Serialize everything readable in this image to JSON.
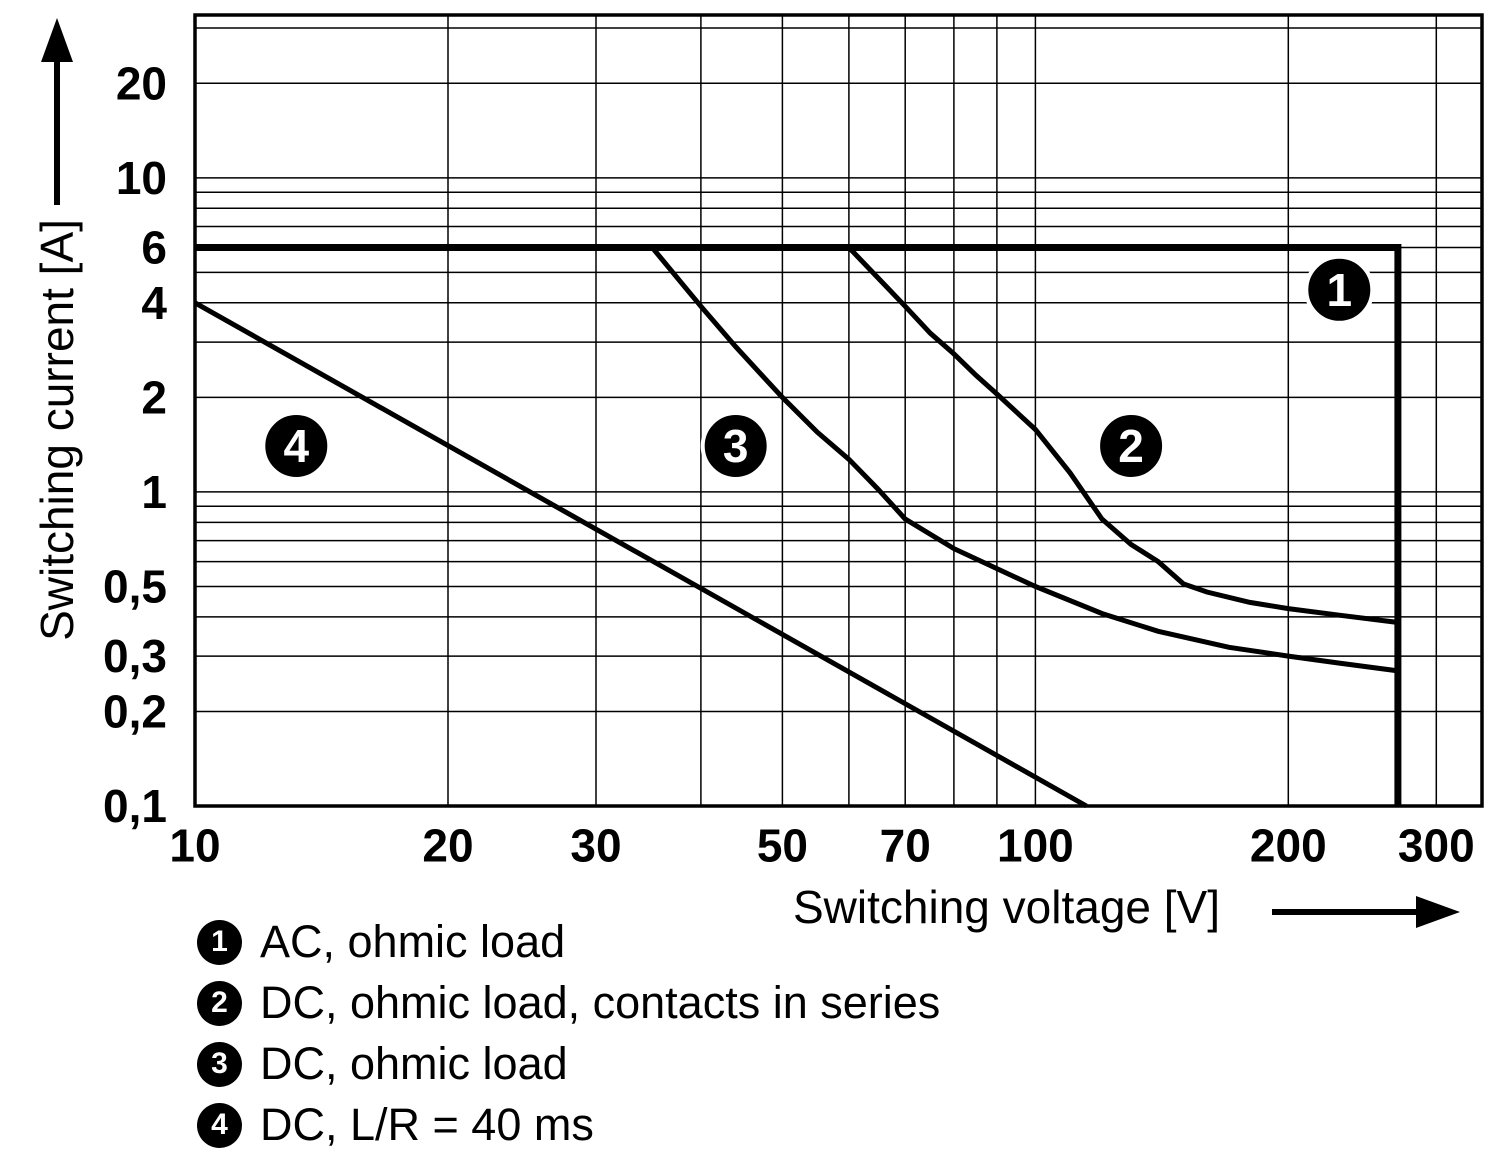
{
  "axes": {
    "x_title": "Switching voltage [V]",
    "y_title": "Switching current [A]"
  },
  "legend": {
    "items": [
      {
        "num": "1",
        "label": "AC, ohmic load"
      },
      {
        "num": "2",
        "label": "DC, ohmic load, contacts in series"
      },
      {
        "num": "3",
        "label": "DC, ohmic load"
      },
      {
        "num": "4",
        "label": "DC, L/R = 40 ms"
      }
    ]
  },
  "colors": {
    "ink": "#000000",
    "background": "#ffffff"
  },
  "chart_data": {
    "type": "line",
    "title": "",
    "xlabel": "Switching voltage [V]",
    "ylabel": "Switching current [A]",
    "x_scale": "log",
    "y_scale": "log",
    "xlim": [
      10,
      340
    ],
    "ylim": [
      0.1,
      33
    ],
    "grid": true,
    "x_ticks": [
      {
        "v": 10,
        "label": "10"
      },
      {
        "v": 20,
        "label": "20"
      },
      {
        "v": 30,
        "label": "30"
      },
      {
        "v": 50,
        "label": "50"
      },
      {
        "v": 70,
        "label": "70"
      },
      {
        "v": 100,
        "label": "100"
      },
      {
        "v": 200,
        "label": "200"
      },
      {
        "v": 300,
        "label": "300"
      }
    ],
    "y_ticks": [
      {
        "v": 20,
        "label": "20"
      },
      {
        "v": 10,
        "label": "10"
      },
      {
        "v": 6,
        "label": "6"
      },
      {
        "v": 4,
        "label": "4"
      },
      {
        "v": 2,
        "label": "2"
      },
      {
        "v": 1,
        "label": "1"
      },
      {
        "v": 0.5,
        "label": "0,5"
      },
      {
        "v": 0.3,
        "label": "0,3"
      },
      {
        "v": 0.2,
        "label": "0,2"
      },
      {
        "v": 0.1,
        "label": "0,1"
      }
    ],
    "x_grid": [
      20,
      30,
      40,
      50,
      60,
      70,
      80,
      90,
      100,
      200,
      300
    ],
    "y_grid": [
      0.2,
      0.3,
      0.4,
      0.5,
      0.6,
      0.7,
      0.8,
      0.9,
      1,
      2,
      3,
      4,
      5,
      6,
      7,
      8,
      9,
      10,
      20,
      30
    ],
    "series": [
      {
        "id": "1",
        "name": "AC, ohmic load",
        "width": 7,
        "points": [
          [
            10,
            6
          ],
          [
            270,
            6
          ],
          [
            270,
            0.1
          ]
        ]
      },
      {
        "id": "2",
        "name": "DC, ohmic load, contacts in series",
        "width": 5,
        "points": [
          [
            60,
            6
          ],
          [
            65,
            4.8
          ],
          [
            70,
            3.9
          ],
          [
            75,
            3.2
          ],
          [
            80,
            2.75
          ],
          [
            85,
            2.35
          ],
          [
            90,
            2.05
          ],
          [
            100,
            1.58
          ],
          [
            110,
            1.15
          ],
          [
            120,
            0.82
          ],
          [
            130,
            0.68
          ],
          [
            140,
            0.6
          ],
          [
            150,
            0.51
          ],
          [
            160,
            0.48
          ],
          [
            180,
            0.445
          ],
          [
            200,
            0.425
          ],
          [
            230,
            0.405
          ],
          [
            268,
            0.385
          ]
        ]
      },
      {
        "id": "3",
        "name": "DC, ohmic load",
        "width": 5,
        "points": [
          [
            35,
            6
          ],
          [
            38,
            4.6
          ],
          [
            40,
            3.9
          ],
          [
            44,
            2.9
          ],
          [
            48,
            2.25
          ],
          [
            50,
            2.0
          ],
          [
            55,
            1.55
          ],
          [
            60,
            1.27
          ],
          [
            65,
            1.02
          ],
          [
            70,
            0.82
          ],
          [
            80,
            0.66
          ],
          [
            90,
            0.57
          ],
          [
            100,
            0.5
          ],
          [
            120,
            0.41
          ],
          [
            140,
            0.36
          ],
          [
            170,
            0.32
          ],
          [
            200,
            0.3
          ],
          [
            230,
            0.285
          ],
          [
            268,
            0.27
          ]
        ]
      },
      {
        "id": "4",
        "name": "DC, L/R = 40 ms",
        "width": 5,
        "points": [
          [
            10,
            4
          ],
          [
            115,
            0.1
          ]
        ]
      }
    ],
    "curve_markers": [
      {
        "label": "1",
        "x": 230,
        "y": 4.4
      },
      {
        "label": "2",
        "x": 130,
        "y": 1.4
      },
      {
        "label": "3",
        "x": 44,
        "y": 1.4
      },
      {
        "label": "4",
        "x": 13.2,
        "y": 1.4
      }
    ]
  }
}
